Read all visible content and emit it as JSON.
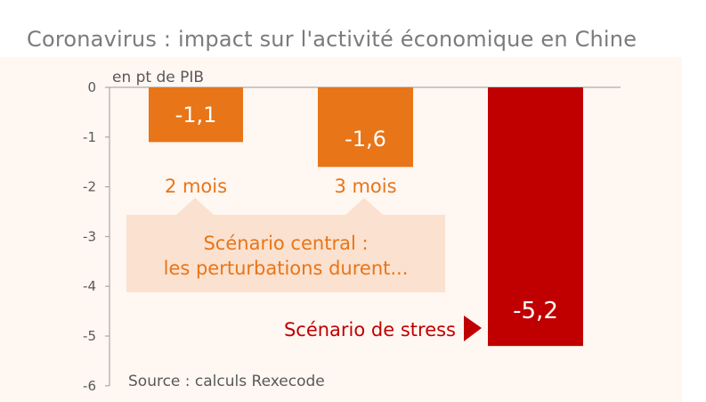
{
  "title": "Coronavirus : impact sur l'activité économique en Chine",
  "colors": {
    "panel_bg": "#fff7f2",
    "central_bar": "#e87518",
    "stress_bar": "#c00000",
    "callout_bg": "#fbe1cf",
    "axis": "#9a9a9a",
    "text_gray": "#595959"
  },
  "chart_data": {
    "type": "bar",
    "title": "Coronavirus : impact sur l'activité économique en Chine",
    "ylabel": "en pt de PIB",
    "xlabel": "",
    "ylim": [
      -6,
      0
    ],
    "yticks": [
      0,
      -1,
      -2,
      -3,
      -4,
      -5,
      -6
    ],
    "grid": false,
    "categories": [
      "2 mois",
      "3 mois",
      "Scénario de stress"
    ],
    "values": [
      -1.1,
      -1.6,
      -5.2
    ],
    "value_labels": [
      "-1,1",
      "-1,6",
      "-5,2"
    ],
    "annotations": {
      "central_scenario": "Scénario central :\nles perturbations durent...",
      "stress_scenario": "Scénario de stress",
      "source": "Source : calculs Rexecode"
    }
  }
}
